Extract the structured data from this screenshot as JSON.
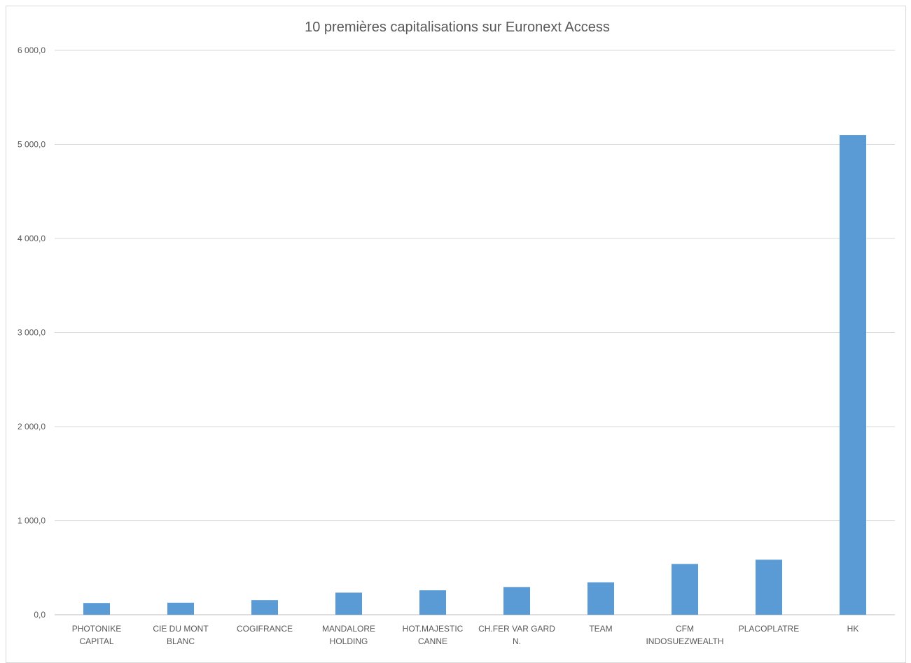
{
  "chart_data": {
    "type": "bar",
    "title": "10 premières capitalisations sur Euronext Access",
    "xlabel": "",
    "ylabel": "",
    "ylim": [
      0,
      6000
    ],
    "yticks": [
      "0,0",
      "1 000,0",
      "2 000,0",
      "3 000,0",
      "4 000,0",
      "5 000,0",
      "6 000,0"
    ],
    "grid": true,
    "legend": "none",
    "bar_color": "#5b9bd5",
    "categories": [
      [
        "PHOTONIKE",
        "CAPITAL"
      ],
      [
        "CIE DU MONT",
        "BLANC"
      ],
      [
        "COGIFRANCE"
      ],
      [
        "MANDALORE",
        "HOLDING"
      ],
      [
        "HOT.MAJESTIC",
        "CANNE"
      ],
      [
        "CH.FER VAR GARD",
        "N."
      ],
      [
        "TEAM"
      ],
      [
        "CFM",
        "INDOSUEZWEALTH"
      ],
      [
        "PLACOPLATRE"
      ],
      [
        "HK"
      ]
    ],
    "values": [
      125,
      128,
      155,
      235,
      260,
      295,
      345,
      540,
      585,
      5100
    ]
  }
}
